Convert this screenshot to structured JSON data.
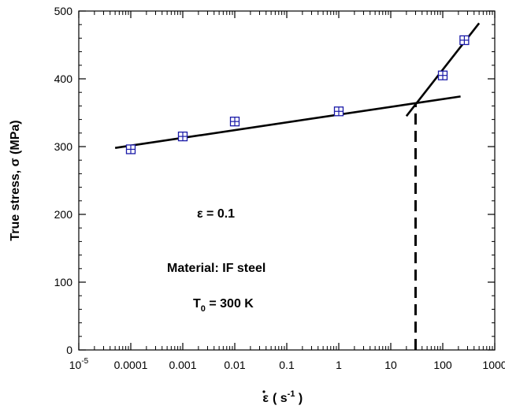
{
  "chart_data": {
    "type": "scatter",
    "title": "",
    "xlabel": "ε̇ ( s-1 )",
    "xlabel_parts": {
      "symbol": "ε",
      "open": "( s",
      "exp": "-1",
      "close": " )"
    },
    "ylabel": "True stress,  σ (MPa)",
    "xscale": "log",
    "xlim": [
      1e-05,
      1000
    ],
    "ylim": [
      0,
      500
    ],
    "xtick_labels": [
      {
        "value": 1e-05,
        "base": "10",
        "exp": "-5"
      },
      {
        "value": 0.0001,
        "text": "0.0001"
      },
      {
        "value": 0.001,
        "text": "0.001"
      },
      {
        "value": 0.01,
        "text": "0.01"
      },
      {
        "value": 0.1,
        "text": "0.1"
      },
      {
        "value": 1,
        "text": "1"
      },
      {
        "value": 10,
        "text": "10"
      },
      {
        "value": 100,
        "text": "100"
      },
      {
        "value": 1000,
        "text": "1000"
      }
    ],
    "yticks": [
      0,
      100,
      200,
      300,
      400,
      500
    ],
    "grid": false,
    "series": [
      {
        "marker": "square-cross",
        "color": "#1a1aa8",
        "x": [
          0.0001,
          0.001,
          0.01,
          1,
          100,
          260
        ],
        "y": [
          296,
          315,
          337,
          352,
          405,
          457
        ]
      }
    ],
    "fit_lines": [
      {
        "x": [
          5e-05,
          220
        ],
        "y": [
          298,
          374
        ],
        "color": "#000000"
      },
      {
        "x": [
          20,
          500
        ],
        "y": [
          345,
          482
        ],
        "color": "#000000"
      }
    ],
    "reference_line": {
      "x": 30,
      "y": [
        0,
        365
      ],
      "style": "dashed",
      "color": "#000000"
    },
    "annotations": [
      {
        "text": "ε = 0.1",
        "parts": {
          "main": "ε = 0.1"
        }
      },
      {
        "text": "Material: IF steel",
        "parts": {
          "main": "Material: IF steel"
        }
      },
      {
        "text": "T0 = 300 K",
        "parts": {
          "base": "T",
          "sub": "0",
          "rest": " = 300 K"
        }
      }
    ]
  }
}
